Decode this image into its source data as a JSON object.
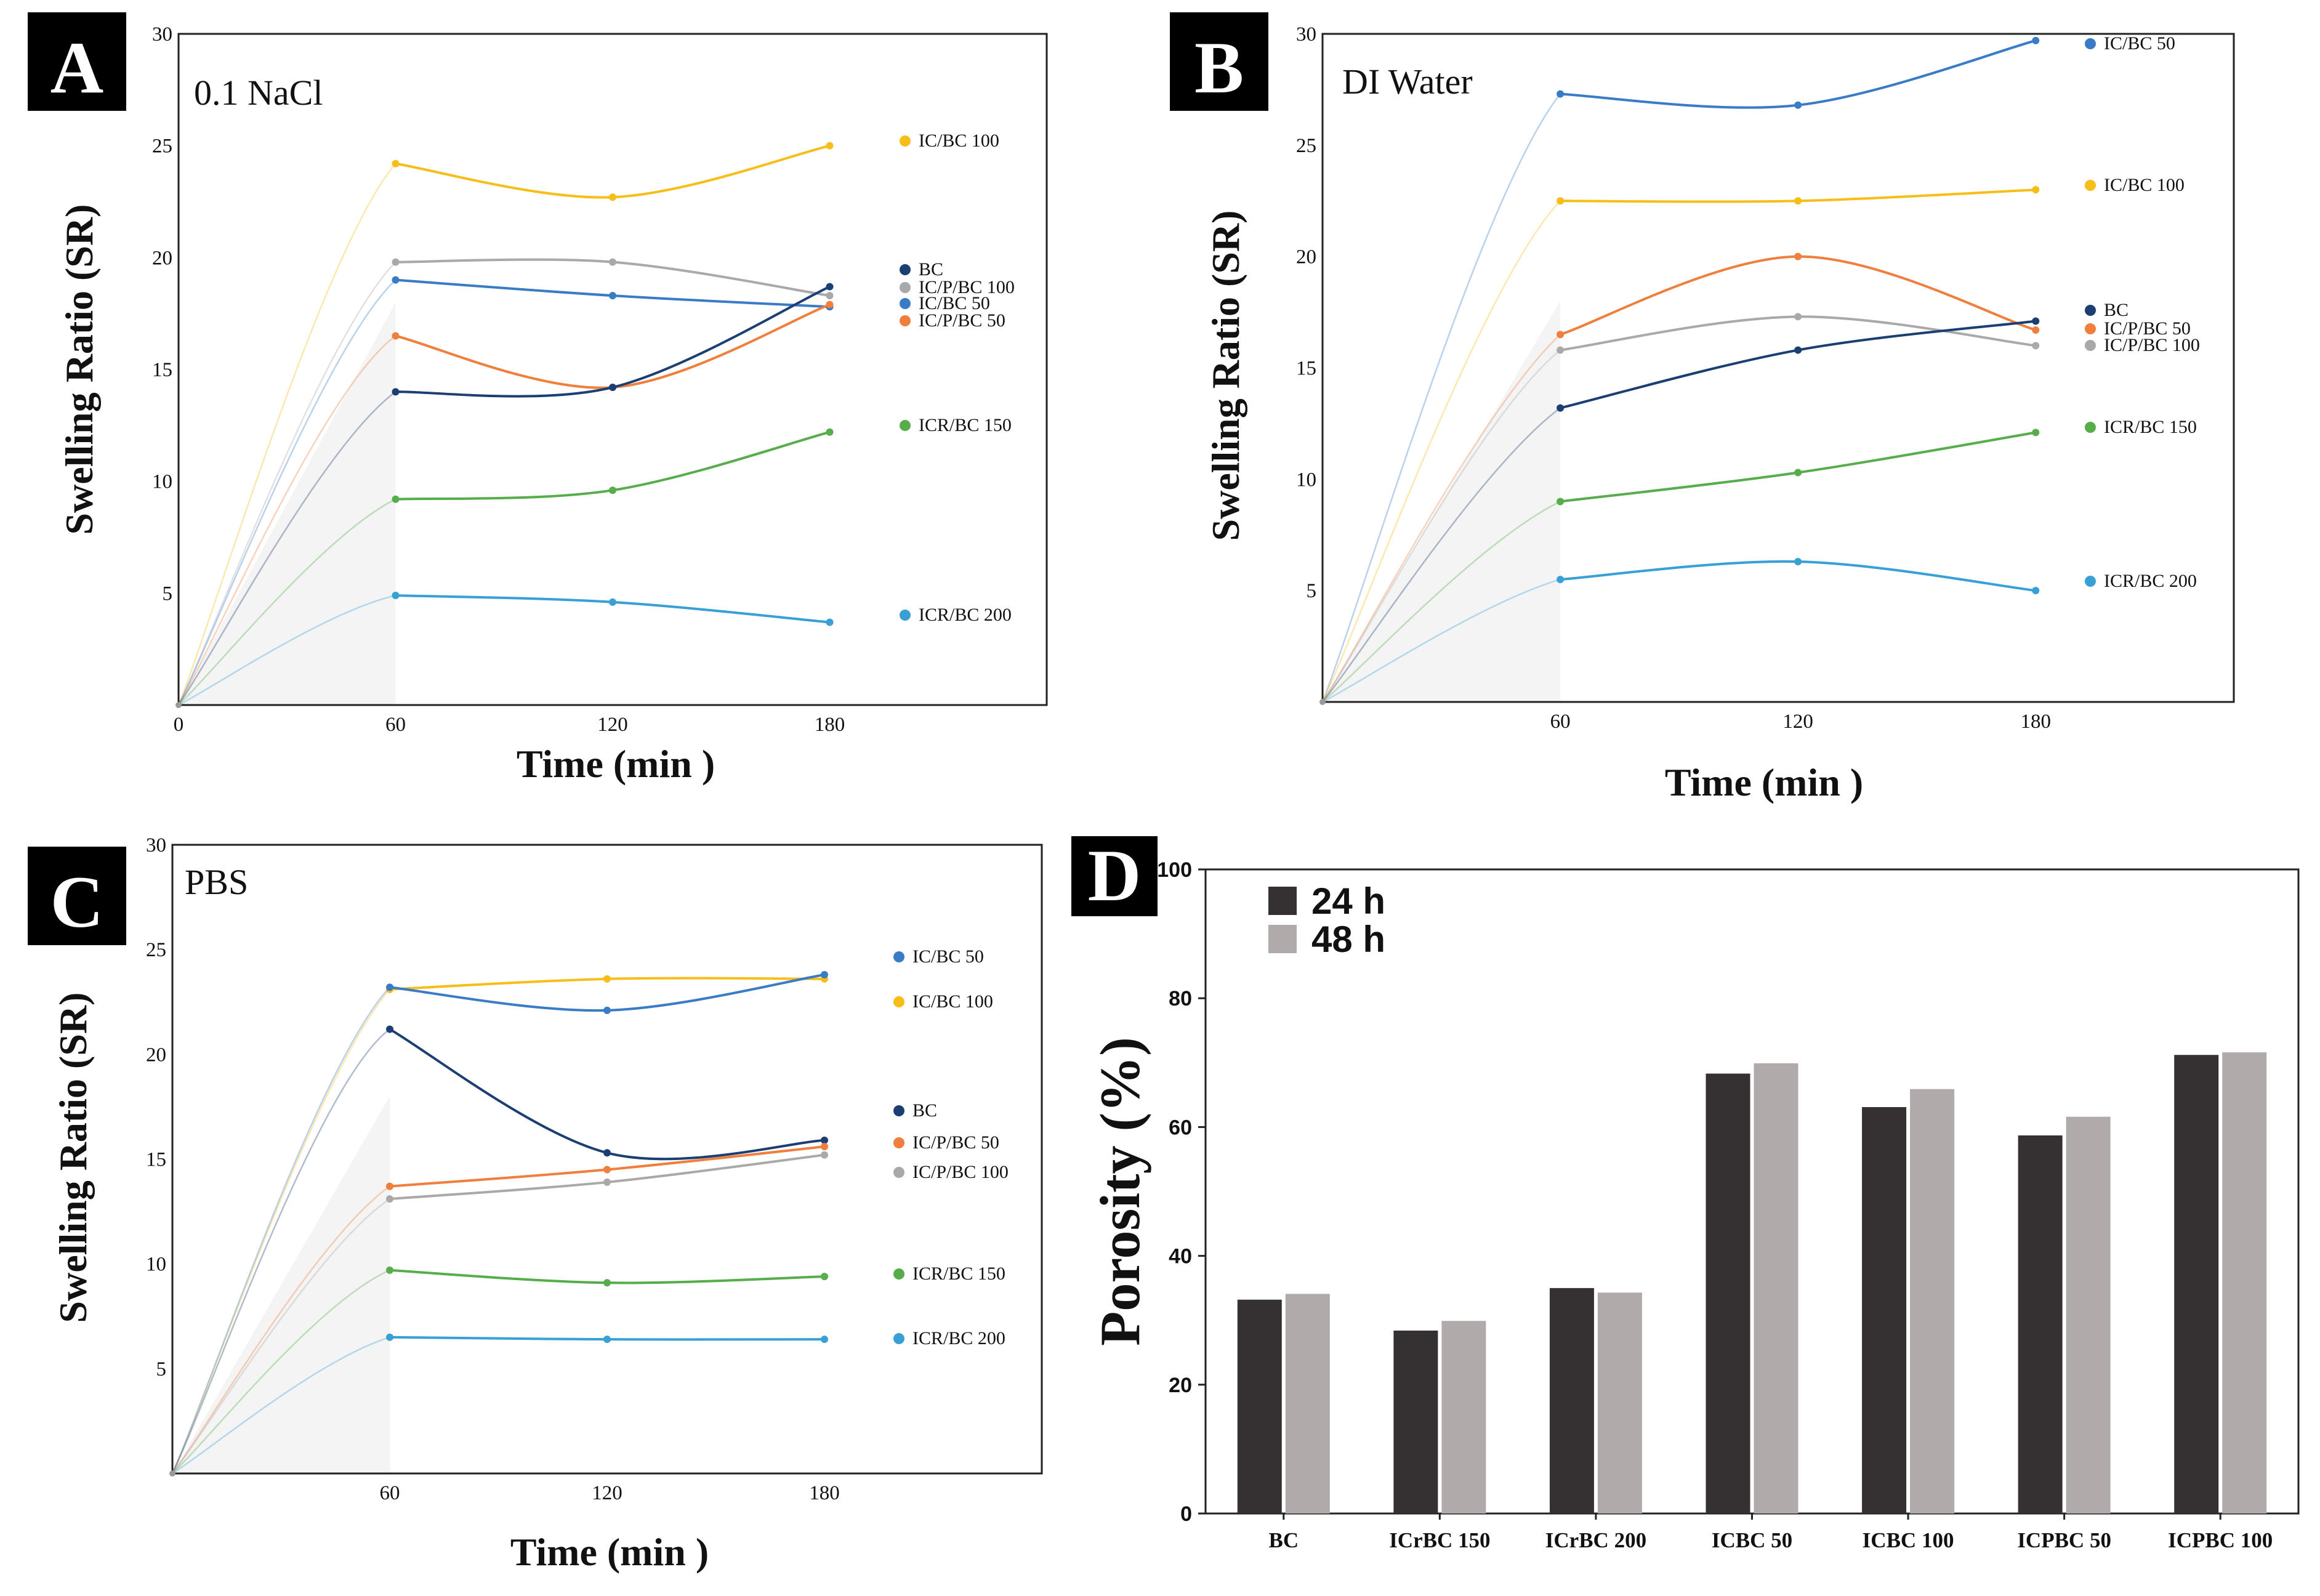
{
  "colors": {
    "navy": "#1c3f73",
    "gray": "#a9a9a9",
    "blue": "#3a7bc8",
    "orange": "#f07e3c",
    "yellow": "#f7be1a",
    "green": "#57ad4b",
    "skyblue": "#39a0d6",
    "dark_bar": "#353133",
    "light_bar": "#b0abaa"
  },
  "chart_data": [
    {
      "type": "line",
      "panel": "A",
      "title": "0.1 NaCl",
      "xlabel": "Time (min )",
      "ylabel": "Swelling Ratio (SR)",
      "xlim": [
        0,
        240
      ],
      "ylim": [
        0,
        30
      ],
      "x_ticks": [
        "0",
        "60",
        "120",
        "180"
      ],
      "y_ticks": [
        "5",
        "10",
        "15",
        "20",
        "25",
        "30"
      ],
      "x": [
        0,
        60,
        120,
        180
      ],
      "series": [
        {
          "name": "IC/BC 100",
          "color": "yellow",
          "values": [
            0,
            24.2,
            22.7,
            25.0
          ]
        },
        {
          "name": "IC/P/BC 100",
          "color": "gray",
          "values": [
            0,
            19.8,
            19.8,
            18.3
          ]
        },
        {
          "name": "IC/BC 50",
          "color": "blue",
          "values": [
            0,
            19.0,
            18.3,
            17.8
          ]
        },
        {
          "name": "IC/P/BC 50",
          "color": "orange",
          "values": [
            0,
            16.5,
            14.2,
            17.9
          ]
        },
        {
          "name": "BC",
          "color": "navy",
          "values": [
            0,
            14.0,
            14.2,
            18.7
          ]
        },
        {
          "name": "ICR/BC 150",
          "color": "green",
          "values": [
            0,
            9.2,
            9.6,
            12.2
          ]
        },
        {
          "name": "ICR/BC 200",
          "color": "skyblue",
          "values": [
            0,
            4.9,
            4.6,
            3.7
          ]
        }
      ],
      "legend": [
        {
          "label": "IC/BC 100",
          "color": "yellow"
        },
        {
          "label": "BC",
          "color": "navy"
        },
        {
          "label": "IC/P/BC 100",
          "color": "gray"
        },
        {
          "label": "IC/BC 50",
          "color": "blue"
        },
        {
          "label": "IC/P/BC 50",
          "color": "orange"
        },
        {
          "label": "ICR/BC 150",
          "color": "green"
        },
        {
          "label": "ICR/BC 200",
          "color": "skyblue"
        }
      ]
    },
    {
      "type": "line",
      "panel": "B",
      "title": "DI Water",
      "xlabel": "Time (min )",
      "ylabel": "Swelling Ratio (SR)",
      "xlim": [
        0,
        230
      ],
      "ylim": [
        0,
        30
      ],
      "x_ticks": [
        "60",
        "120",
        "180"
      ],
      "y_ticks": [
        "5",
        "10",
        "15",
        "20",
        "25",
        "30"
      ],
      "x": [
        0,
        60,
        120,
        180
      ],
      "series": [
        {
          "name": "IC/BC 50",
          "color": "blue",
          "values": [
            0,
            27.3,
            26.8,
            29.7
          ]
        },
        {
          "name": "IC/BC 100",
          "color": "yellow",
          "values": [
            0,
            22.5,
            22.5,
            23.0
          ]
        },
        {
          "name": "IC/P/BC 50",
          "color": "orange",
          "values": [
            0,
            16.5,
            20.0,
            16.7
          ]
        },
        {
          "name": "IC/P/BC 100",
          "color": "gray",
          "values": [
            0,
            15.8,
            17.3,
            16.0
          ]
        },
        {
          "name": "BC",
          "color": "navy",
          "values": [
            0,
            13.2,
            15.8,
            17.1
          ]
        },
        {
          "name": "ICR/BC 150",
          "color": "green",
          "values": [
            0,
            9.0,
            10.3,
            12.1
          ]
        },
        {
          "name": "ICR/BC 200",
          "color": "skyblue",
          "values": [
            0,
            5.5,
            6.3,
            5.0
          ]
        }
      ],
      "legend": [
        {
          "label": "IC/BC 50",
          "color": "blue"
        },
        {
          "label": "IC/BC 100",
          "color": "yellow"
        },
        {
          "label": "BC",
          "color": "navy"
        },
        {
          "label": "IC/P/BC 50",
          "color": "orange"
        },
        {
          "label": "IC/P/BC 100",
          "color": "gray"
        },
        {
          "label": "ICR/BC 150",
          "color": "green"
        },
        {
          "label": "ICR/BC 200",
          "color": "skyblue"
        }
      ]
    },
    {
      "type": "line",
      "panel": "C",
      "title": "PBS",
      "xlabel": "Time (min )",
      "ylabel": "Swelling Ratio (SR)",
      "xlim": [
        0,
        240
      ],
      "ylim": [
        0,
        30
      ],
      "x_ticks": [
        "60",
        "120",
        "180"
      ],
      "y_ticks": [
        "5",
        "10",
        "15",
        "20",
        "25",
        "30"
      ],
      "x": [
        0,
        60,
        120,
        180
      ],
      "series": [
        {
          "name": "IC/BC 100",
          "color": "yellow",
          "values": [
            0,
            23.1,
            23.6,
            23.6
          ]
        },
        {
          "name": "IC/BC 50",
          "color": "blue",
          "values": [
            0,
            23.2,
            22.1,
            23.8
          ]
        },
        {
          "name": "BC",
          "color": "navy",
          "values": [
            0,
            21.2,
            15.3,
            15.9
          ]
        },
        {
          "name": "IC/P/BC 50",
          "color": "orange",
          "values": [
            0,
            13.7,
            14.5,
            15.6
          ]
        },
        {
          "name": "IC/P/BC 100",
          "color": "gray",
          "values": [
            0,
            13.1,
            13.9,
            15.2
          ]
        },
        {
          "name": "ICR/BC 150",
          "color": "green",
          "values": [
            0,
            9.7,
            9.1,
            9.4
          ]
        },
        {
          "name": "ICR/BC 200",
          "color": "skyblue",
          "values": [
            0,
            6.5,
            6.4,
            6.4
          ]
        }
      ],
      "legend": [
        {
          "label": "IC/BC 50",
          "color": "blue"
        },
        {
          "label": "IC/BC 100",
          "color": "yellow"
        },
        {
          "label": "BC",
          "color": "navy"
        },
        {
          "label": "IC/P/BC 50",
          "color": "orange"
        },
        {
          "label": "IC/P/BC 100",
          "color": "gray"
        },
        {
          "label": "ICR/BC 150",
          "color": "green"
        },
        {
          "label": "ICR/BC 200",
          "color": "skyblue"
        }
      ]
    },
    {
      "type": "bar",
      "panel": "D",
      "title": "",
      "xlabel": "",
      "ylabel": "Porosity (%)",
      "ylim": [
        0,
        100
      ],
      "y_ticks": [
        "0",
        "20",
        "40",
        "60",
        "80",
        "100"
      ],
      "categories": [
        "BC",
        "ICrBC 150",
        "ICrBC 200",
        "ICBC 50",
        "ICBC 100",
        "ICPBC 50",
        "ICPBC 100"
      ],
      "series": [
        {
          "name": "24 h",
          "color": "dark_bar",
          "values": [
            33.2,
            28.4,
            35.0,
            68.3,
            63.1,
            58.7,
            71.2
          ]
        },
        {
          "name": "48 h",
          "color": "light_bar",
          "values": [
            34.1,
            29.9,
            34.3,
            69.9,
            65.9,
            61.6,
            71.6
          ]
        }
      ]
    }
  ]
}
